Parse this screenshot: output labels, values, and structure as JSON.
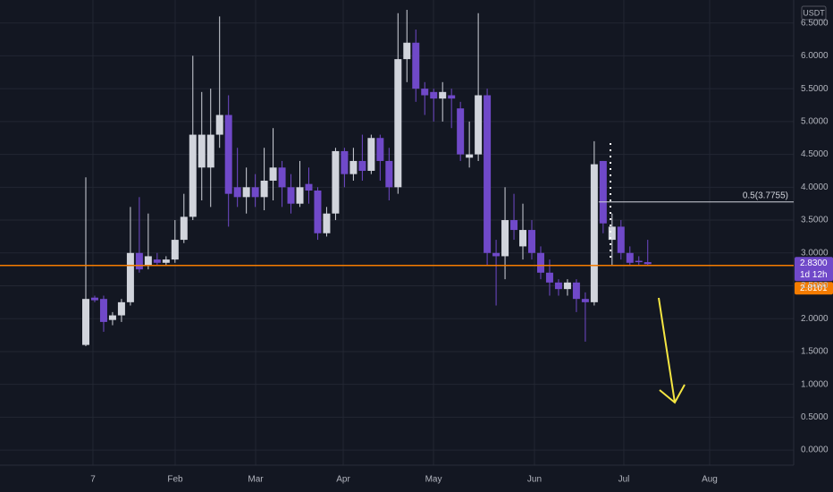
{
  "chart_data": {
    "type": "candlestick",
    "unit": "USDT",
    "up_color": "#d1d4dc",
    "down_color": "#7049c9",
    "grid": true,
    "open": [
      1.6,
      2.32,
      2.3,
      1.98,
      2.05,
      2.25,
      3.0,
      2.8,
      2.9,
      2.85,
      2.9,
      3.2,
      3.55,
      4.3,
      4.3,
      4.8,
      5.1,
      4.0,
      3.85,
      4.0,
      3.85,
      4.1,
      4.3,
      4.0,
      3.75,
      4.05,
      3.95,
      3.3,
      3.6,
      4.55,
      4.2,
      4.4,
      4.25,
      4.75,
      4.4,
      4.0,
      5.95,
      6.2,
      5.5,
      5.45,
      5.35,
      5.4,
      5.2,
      4.45,
      4.5,
      5.4,
      3.0,
      2.95,
      3.5,
      3.1,
      3.35,
      3.0,
      2.7,
      2.55,
      2.45,
      2.55,
      2.3,
      2.25,
      4.4,
      3.2,
      3.4,
      3.0,
      2.88,
      2.86
    ],
    "high": [
      4.15,
      2.35,
      2.35,
      2.1,
      2.3,
      3.7,
      3.85,
      3.6,
      3.0,
      2.95,
      3.5,
      3.9,
      6.0,
      5.45,
      5.5,
      6.6,
      5.4,
      4.6,
      4.3,
      4.2,
      4.6,
      4.9,
      4.4,
      4.2,
      4.4,
      4.3,
      4.0,
      3.7,
      4.6,
      4.6,
      4.6,
      4.8,
      4.8,
      4.8,
      4.6,
      6.65,
      6.7,
      6.4,
      5.6,
      5.5,
      5.6,
      5.5,
      5.3,
      5.0,
      6.65,
      5.5,
      3.2,
      4.0,
      3.9,
      3.75,
      3.5,
      3.1,
      2.9,
      2.6,
      2.6,
      2.6,
      2.4,
      4.7,
      4.4,
      3.6,
      3.5,
      3.1,
      2.95,
      3.2
    ],
    "low": [
      1.58,
      2.25,
      1.8,
      1.9,
      1.95,
      2.2,
      2.7,
      2.75,
      2.8,
      2.8,
      2.85,
      3.15,
      3.5,
      3.8,
      3.7,
      4.6,
      3.4,
      3.7,
      3.6,
      3.7,
      3.65,
      3.8,
      3.7,
      3.6,
      3.7,
      3.75,
      3.2,
      3.25,
      3.5,
      4.0,
      4.1,
      4.1,
      4.2,
      4.1,
      3.8,
      3.9,
      5.6,
      5.3,
      5.1,
      5.0,
      5.0,
      4.9,
      4.4,
      4.3,
      4.4,
      2.8,
      2.2,
      2.6,
      3.2,
      2.9,
      2.9,
      2.6,
      2.35,
      2.35,
      2.35,
      2.1,
      1.65,
      2.2,
      3.3,
      2.8,
      2.9,
      2.8,
      2.82,
      2.8
    ],
    "close": [
      2.3,
      2.28,
      1.95,
      2.05,
      2.25,
      3.0,
      2.75,
      2.95,
      2.85,
      2.9,
      3.2,
      3.55,
      4.8,
      4.8,
      4.8,
      5.1,
      3.9,
      3.85,
      4.0,
      3.85,
      4.1,
      4.3,
      4.0,
      3.75,
      4.0,
      3.95,
      3.3,
      3.6,
      4.55,
      4.2,
      4.4,
      4.25,
      4.75,
      4.4,
      4.0,
      5.95,
      6.2,
      5.5,
      5.4,
      5.35,
      5.45,
      5.35,
      4.5,
      4.5,
      5.4,
      3.0,
      2.95,
      3.5,
      3.35,
      3.35,
      3.0,
      2.7,
      2.55,
      2.45,
      2.55,
      2.3,
      2.25,
      4.35,
      3.45,
      3.4,
      3.0,
      2.85,
      2.86,
      2.83
    ],
    "xlim": [
      -9.62,
      79.36
    ],
    "xticks": [
      {
        "value": 0.8,
        "label": "7"
      },
      {
        "value": 10.02,
        "label": "Feb"
      },
      {
        "value": 19.04,
        "label": "Mar"
      },
      {
        "value": 28.86,
        "label": "Apr"
      },
      {
        "value": 38.98,
        "label": "May"
      },
      {
        "value": 50.3,
        "label": "Jun"
      },
      {
        "value": 60.32,
        "label": "Jul"
      },
      {
        "value": 69.94,
        "label": "Aug"
      }
    ],
    "ylim": [
      -0.23,
      6.85
    ],
    "yticks": [
      {
        "value": 0,
        "label": "0.0000"
      },
      {
        "value": 0.5,
        "label": "0.5000"
      },
      {
        "value": 1,
        "label": "1.0000"
      },
      {
        "value": 1.5,
        "label": "1.5000"
      },
      {
        "value": 2,
        "label": "2.0000"
      },
      {
        "value": 2.5,
        "label": "2.5000"
      },
      {
        "value": 3,
        "label": "3.0000"
      },
      {
        "value": 3.5,
        "label": "3.5000"
      },
      {
        "value": 4,
        "label": "4.0000"
      },
      {
        "value": 4.5,
        "label": "4.5000"
      },
      {
        "value": 5,
        "label": "5.0000"
      },
      {
        "value": 5.5,
        "label": "5.5000"
      },
      {
        "value": 6,
        "label": "6.0000"
      },
      {
        "value": 6.5,
        "label": "6.5000"
      }
    ],
    "fib_level": {
      "value": 3.7755,
      "label": "0.5(3.7755)"
    },
    "last_price": {
      "value": 2.83,
      "label": "2.8300",
      "countdown": "1d 12h"
    },
    "price_line": {
      "value": 2.8101,
      "label": "2.8101",
      "color": "#f57c00"
    }
  }
}
